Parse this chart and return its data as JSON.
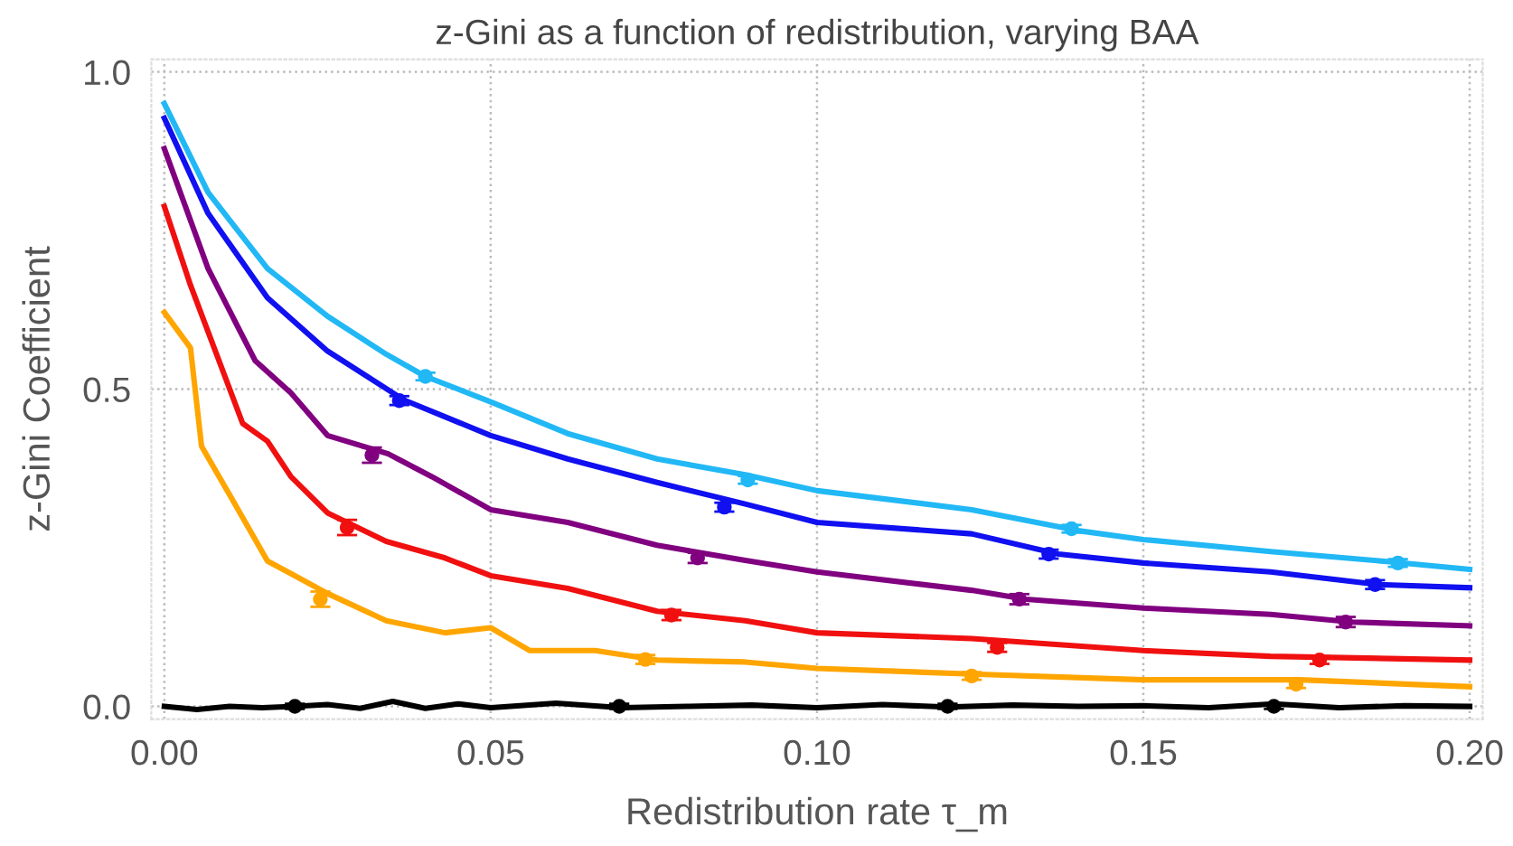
{
  "chart_data": {
    "type": "line",
    "title": "z-Gini as a function of redistribution, varying BAA",
    "xlabel": "Redistribution rate τ_m",
    "ylabel": "z-Gini Coefficient",
    "xlim": [
      -0.002,
      0.202
    ],
    "ylim": [
      -0.02,
      1.02
    ],
    "xticks": [
      {
        "value": 0,
        "label": "0.00"
      },
      {
        "value": 0.05,
        "label": "0.05"
      },
      {
        "value": 0.1,
        "label": "0.10"
      },
      {
        "value": 0.15,
        "label": "0.15"
      },
      {
        "value": 0.2,
        "label": "0.20"
      }
    ],
    "yticks": [
      {
        "value": 0,
        "label": "0.0"
      },
      {
        "value": 0.5,
        "label": "0.5"
      },
      {
        "value": 1,
        "label": "1.0"
      }
    ],
    "grid": true,
    "legend": false,
    "line_style": "solid",
    "series": [
      {
        "color": "#21b8f5",
        "x": [
          0,
          0.0067,
          0.0158,
          0.025,
          0.034,
          0.04,
          0.05,
          0.0618,
          0.0755,
          0.089,
          0.1,
          0.1237,
          0.14,
          0.15,
          0.1695,
          0.1877,
          0.2
        ],
        "values": [
          0.95,
          0.81,
          0.69,
          0.615,
          0.555,
          0.52,
          0.48,
          0.43,
          0.39,
          0.365,
          0.34,
          0.31,
          0.277,
          0.263,
          0.244,
          0.228,
          0.216
        ]
      },
      {
        "color": "#1010f0",
        "x": [
          0,
          0.0067,
          0.0158,
          0.025,
          0.0367,
          0.05,
          0.0618,
          0.0755,
          0.089,
          0.1,
          0.1237,
          0.137,
          0.15,
          0.1695,
          0.186,
          0.2
        ],
        "values": [
          0.927,
          0.777,
          0.644,
          0.56,
          0.483,
          0.427,
          0.39,
          0.353,
          0.319,
          0.29,
          0.272,
          0.24,
          0.226,
          0.212,
          0.192,
          0.187
        ]
      },
      {
        "color": "#800080",
        "x": [
          0,
          0.0067,
          0.0139,
          0.0194,
          0.025,
          0.0343,
          0.041,
          0.05,
          0.0618,
          0.0755,
          0.089,
          0.1,
          0.1237,
          0.132,
          0.15,
          0.1695,
          0.182,
          0.2
        ],
        "values": [
          0.879,
          0.69,
          0.545,
          0.494,
          0.427,
          0.398,
          0.362,
          0.31,
          0.29,
          0.254,
          0.23,
          0.212,
          0.183,
          0.169,
          0.155,
          0.145,
          0.133,
          0.127
        ]
      },
      {
        "color": "#f01010",
        "x": [
          0,
          0.004,
          0.012,
          0.0158,
          0.0194,
          0.025,
          0.034,
          0.043,
          0.05,
          0.0618,
          0.0755,
          0.089,
          0.1,
          0.1237,
          0.15,
          0.1695,
          0.2
        ],
        "values": [
          0.788,
          0.664,
          0.446,
          0.418,
          0.362,
          0.305,
          0.26,
          0.234,
          0.206,
          0.186,
          0.15,
          0.135,
          0.116,
          0.107,
          0.088,
          0.079,
          0.073
        ]
      },
      {
        "color": "#ffa500",
        "x": [
          0,
          0.004,
          0.0057,
          0.0103,
          0.0158,
          0.02,
          0.025,
          0.034,
          0.043,
          0.05,
          0.056,
          0.066,
          0.0755,
          0.089,
          0.1,
          0.1237,
          0.15,
          0.174,
          0.2
        ],
        "values": [
          0.621,
          0.565,
          0.41,
          0.328,
          0.229,
          0.206,
          0.178,
          0.135,
          0.116,
          0.124,
          0.088,
          0.088,
          0.073,
          0.07,
          0.06,
          0.051,
          0.042,
          0.042,
          0.031
        ]
      },
      {
        "color": "#000000",
        "x": [
          0,
          0.005,
          0.01,
          0.015,
          0.02,
          0.025,
          0.03,
          0.035,
          0.04,
          0.045,
          0.05,
          0.06,
          0.07,
          0.08,
          0.09,
          0.1,
          0.11,
          0.12,
          0.13,
          0.14,
          0.15,
          0.16,
          0.17,
          0.18,
          0.19,
          0.2
        ],
        "values": [
          0,
          -0.005,
          0,
          -0.002,
          0,
          0.003,
          -0.003,
          0.008,
          -0.003,
          0.004,
          -0.002,
          0.005,
          -0.002,
          0,
          0.002,
          -0.002,
          0.003,
          -0.001,
          0.002,
          0,
          0.001,
          -0.002,
          0.004,
          -0.002,
          0.001,
          0
        ]
      },
      {
        "type": "scatter",
        "color": "#21b8f5",
        "marker": "circle",
        "x": [
          0.04,
          0.0894,
          0.139,
          0.189
        ],
        "values": [
          0.52,
          0.357,
          0.28,
          0.226
        ],
        "errors": [
          0.006,
          0.006,
          0.006,
          0.006
        ]
      },
      {
        "type": "scatter",
        "color": "#1010f0",
        "marker": "circle",
        "x": [
          0.036,
          0.0858,
          0.1355,
          0.1855
        ],
        "values": [
          0.482,
          0.314,
          0.24,
          0.192
        ],
        "errors": [
          0.007,
          0.007,
          0.007,
          0.007
        ]
      },
      {
        "type": "scatter",
        "color": "#800080",
        "marker": "circle",
        "x": [
          0.0318,
          0.0817,
          0.131,
          0.181
        ],
        "values": [
          0.396,
          0.234,
          0.169,
          0.133
        ],
        "errors": [
          0.012,
          0.008,
          0.008,
          0.008
        ]
      },
      {
        "type": "scatter",
        "color": "#f01010",
        "marker": "circle",
        "x": [
          0.028,
          0.0777,
          0.1276,
          0.177
        ],
        "values": [
          0.282,
          0.144,
          0.093,
          0.073
        ],
        "errors": [
          0.012,
          0.008,
          0.007,
          0.006
        ]
      },
      {
        "type": "scatter",
        "color": "#ffa500",
        "marker": "circle",
        "x": [
          0.0239,
          0.0737,
          0.1237,
          0.1734
        ],
        "values": [
          0.169,
          0.074,
          0.048,
          0.035
        ],
        "errors": [
          0.012,
          0.007,
          0.006,
          0.006
        ]
      },
      {
        "type": "scatter",
        "color": "#000000",
        "marker": "circle",
        "x": [
          0.02,
          0.0697,
          0.12,
          0.17
        ],
        "values": [
          0,
          0,
          0,
          0
        ],
        "errors": [
          0.004,
          0.004,
          0.004,
          0.004
        ]
      }
    ]
  }
}
